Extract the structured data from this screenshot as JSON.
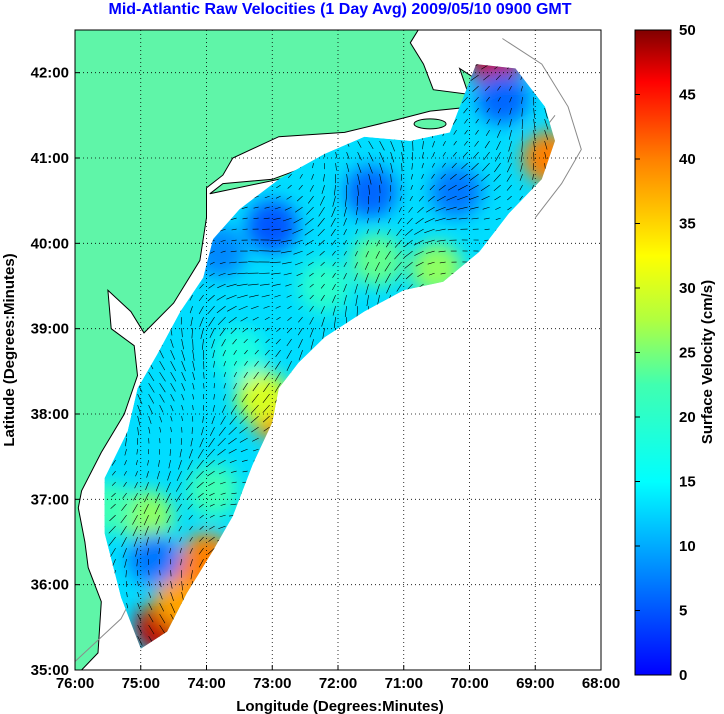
{
  "chart_data": {
    "type": "heatmap",
    "title": "Mid-Atlantic Raw Velocities (1 Day Avg) 2009/05/10 0900 GMT",
    "xlabel": "Longitude (Degrees:Minutes)",
    "ylabel": "Latitude (Degrees:Minutes)",
    "x_ticks": [
      "76:00",
      "75:00",
      "74:00",
      "73:00",
      "72:00",
      "71:00",
      "70:00",
      "69:00",
      "68:00"
    ],
    "y_ticks": [
      "42:00",
      "41:00",
      "40:00",
      "39:00",
      "38:00",
      "37:00",
      "36:00",
      "35:00"
    ],
    "xlim": [
      -76,
      -68
    ],
    "ylim": [
      35,
      42.5
    ],
    "grid": true,
    "colorbar": {
      "label": "Surface Velocity (cm/s)",
      "ticks": [
        "50",
        "45",
        "40",
        "35",
        "30",
        "25",
        "20",
        "15",
        "10",
        "5",
        "0"
      ],
      "range": [
        0,
        50
      ],
      "colormap": "jet"
    },
    "land_color": "#5ff5a8",
    "coverage_region_lonlat": [
      [
        -75.55,
        37.25
      ],
      [
        -75.55,
        36.6
      ],
      [
        -75.3,
        35.85
      ],
      [
        -75.0,
        35.25
      ],
      [
        -74.6,
        35.45
      ],
      [
        -74.3,
        35.9
      ],
      [
        -73.9,
        36.4
      ],
      [
        -73.6,
        36.8
      ],
      [
        -73.3,
        37.4
      ],
      [
        -73.0,
        37.9
      ],
      [
        -72.9,
        38.3
      ],
      [
        -72.6,
        38.6
      ],
      [
        -72.2,
        38.9
      ],
      [
        -71.6,
        39.2
      ],
      [
        -71.0,
        39.45
      ],
      [
        -70.4,
        39.55
      ],
      [
        -69.85,
        39.9
      ],
      [
        -69.4,
        40.35
      ],
      [
        -68.9,
        40.75
      ],
      [
        -68.7,
        41.2
      ],
      [
        -68.85,
        41.6
      ],
      [
        -69.3,
        42.05
      ],
      [
        -69.9,
        42.1
      ],
      [
        -70.1,
        41.7
      ],
      [
        -70.3,
        41.3
      ],
      [
        -70.9,
        41.2
      ],
      [
        -71.6,
        41.25
      ],
      [
        -72.2,
        41.05
      ],
      [
        -72.9,
        40.75
      ],
      [
        -73.5,
        40.4
      ],
      [
        -73.9,
        40.05
      ],
      [
        -74.05,
        39.6
      ],
      [
        -74.4,
        39.2
      ],
      [
        -74.75,
        38.7
      ],
      [
        -75.05,
        38.3
      ],
      [
        -75.2,
        37.8
      ]
    ],
    "velocity_hotspots": [
      {
        "lon": -74.7,
        "lat": 35.5,
        "value": 48
      },
      {
        "lon": -74.2,
        "lat": 36.0,
        "value": 45
      },
      {
        "lon": -74.0,
        "lat": 36.3,
        "value": 40
      },
      {
        "lon": -74.4,
        "lat": 35.8,
        "value": 38
      },
      {
        "lon": -72.95,
        "lat": 38.0,
        "value": 40
      },
      {
        "lon": -73.15,
        "lat": 38.2,
        "value": 30
      },
      {
        "lon": -69.6,
        "lat": 42.1,
        "value": 48
      },
      {
        "lon": -68.8,
        "lat": 41.0,
        "value": 40
      },
      {
        "lon": -70.5,
        "lat": 39.7,
        "value": 26
      },
      {
        "lon": -71.4,
        "lat": 39.8,
        "value": 24
      },
      {
        "lon": -72.2,
        "lat": 39.5,
        "value": 20
      },
      {
        "lon": -73.5,
        "lat": 38.7,
        "value": 18
      },
      {
        "lon": -74.9,
        "lat": 36.8,
        "value": 26
      },
      {
        "lon": -75.5,
        "lat": 36.9,
        "value": 22
      },
      {
        "lon": -73.9,
        "lat": 37.1,
        "value": 22
      },
      {
        "lon": -73.0,
        "lat": 40.2,
        "value": 5
      },
      {
        "lon": -71.5,
        "lat": 40.6,
        "value": 6
      },
      {
        "lon": -70.2,
        "lat": 40.6,
        "value": 7
      },
      {
        "lon": -69.5,
        "lat": 41.7,
        "value": 6
      },
      {
        "lon": -74.8,
        "lat": 36.3,
        "value": 7
      },
      {
        "lon": -73.8,
        "lat": 39.9,
        "value": 8
      }
    ],
    "background_velocity": 13
  }
}
